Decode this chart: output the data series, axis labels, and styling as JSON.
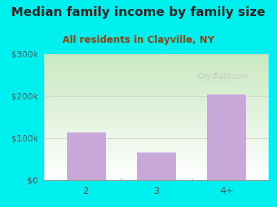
{
  "title": "Median family income by family size",
  "subtitle": "All residents in Clayville, NY",
  "categories": [
    "2",
    "3",
    "4+"
  ],
  "values": [
    112500,
    65000,
    202500
  ],
  "bar_color": "#c8a8d8",
  "background_color": "#00efef",
  "gradient_top": "#c8e8c0",
  "gradient_bottom": "#ffffff",
  "ylim": [
    0,
    300000
  ],
  "yticks": [
    0,
    100000,
    200000,
    300000
  ],
  "ytick_labels": [
    "$0",
    "$100k",
    "$200k",
    "$300k"
  ],
  "title_fontsize": 13,
  "subtitle_fontsize": 10,
  "title_color": "#222222",
  "subtitle_color": "#8b4513",
  "watermark": "City-Data.com",
  "grid_color": "#cccccc",
  "tick_label_color": "#555555"
}
